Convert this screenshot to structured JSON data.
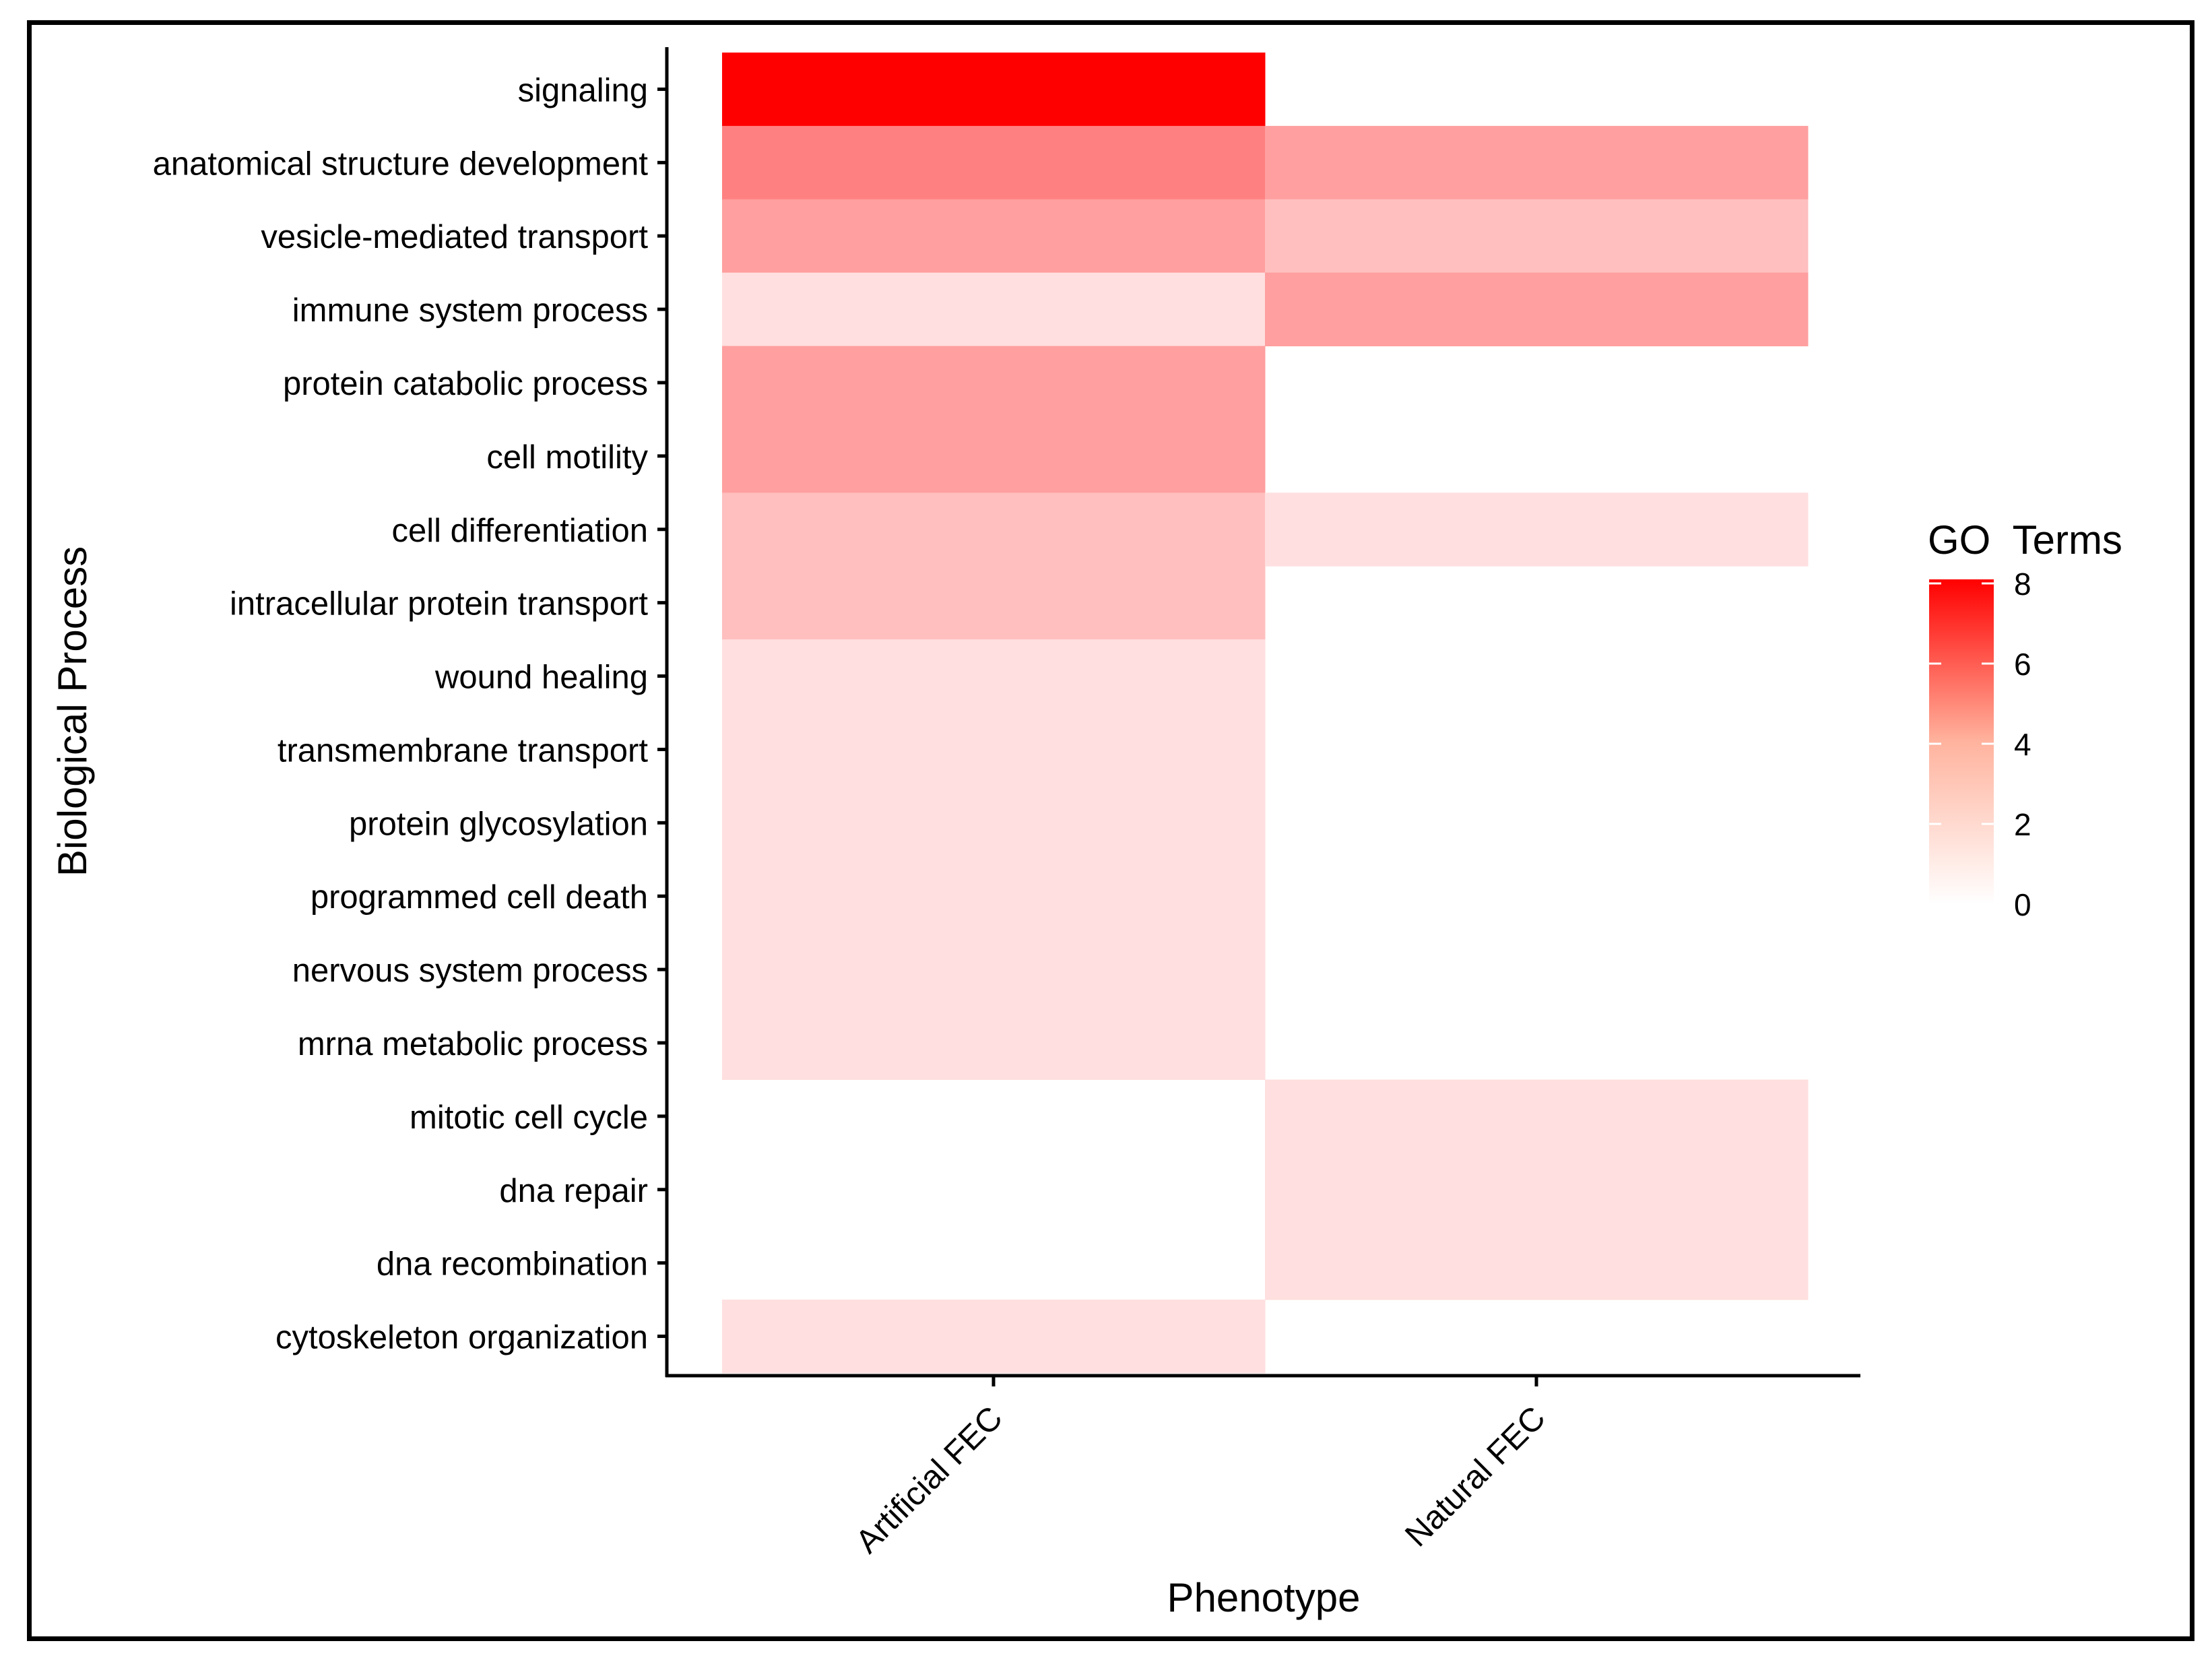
{
  "chart_data": {
    "type": "heatmap",
    "title": "",
    "xlabel": "Phenotype",
    "ylabel": "Biological Process",
    "x_categories": [
      "Artificial FEC",
      "Natural FEC"
    ],
    "y_categories": [
      "signaling",
      "anatomical structure development",
      "vesicle-mediated transport",
      "immune system process",
      "protein catabolic process",
      "cell motility",
      "cell differentiation",
      "intracellular protein transport",
      "wound healing",
      "transmembrane transport",
      "protein glycosylation",
      "programmed cell death",
      "nervous system process",
      "mrna metabolic process",
      "mitotic cell cycle",
      "dna repair",
      "dna recombination",
      "cytoskeleton organization"
    ],
    "values": [
      [
        8,
        null
      ],
      [
        4,
        3
      ],
      [
        3,
        2
      ],
      [
        1,
        3
      ],
      [
        3,
        null
      ],
      [
        3,
        null
      ],
      [
        2,
        1
      ],
      [
        2,
        null
      ],
      [
        1,
        null
      ],
      [
        1,
        null
      ],
      [
        1,
        null
      ],
      [
        1,
        null
      ],
      [
        1,
        null
      ],
      [
        1,
        null
      ],
      [
        null,
        1
      ],
      [
        null,
        1
      ],
      [
        null,
        1
      ],
      [
        1,
        null
      ]
    ],
    "legend": {
      "title": "GO  Terms",
      "ticks": [
        "0",
        "2",
        "4",
        "6",
        "8"
      ],
      "min": 0,
      "max": 8,
      "low_color": "#ffffff",
      "high_color": "#ff0000",
      "placement": "right"
    }
  }
}
